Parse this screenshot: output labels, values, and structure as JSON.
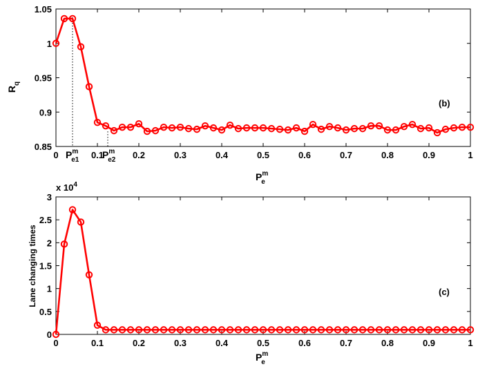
{
  "chart_data": [
    {
      "type": "line",
      "panel_label": "(b)",
      "ylabel": {
        "main": "R",
        "sub": "q"
      },
      "xlabel": {
        "main": "P",
        "sup": "m",
        "sub": "e"
      },
      "xlim": [
        0,
        1
      ],
      "ylim": [
        0.85,
        1.05
      ],
      "xticks": [
        "0",
        "0.1",
        "0.2",
        "0.3",
        "0.4",
        "0.5",
        "0.6",
        "0.7",
        "0.8",
        "0.9",
        "1"
      ],
      "yticks": [
        "0.85",
        "0.9",
        "0.95",
        "1",
        "1.05"
      ],
      "marker_annotations": [
        {
          "x": 0.04,
          "main": "P",
          "sup": "m",
          "sub": "e1"
        },
        {
          "x": 0.125,
          "main": "P",
          "sup": "m",
          "sub": "e2"
        }
      ],
      "color": "#ff0000",
      "series": [
        {
          "x": [
            0,
            0.02,
            0.04,
            0.06,
            0.08,
            0.1,
            0.12,
            0.14,
            0.16,
            0.18,
            0.2,
            0.22,
            0.24,
            0.26,
            0.28,
            0.3,
            0.32,
            0.34,
            0.36,
            0.38,
            0.4,
            0.42,
            0.44,
            0.46,
            0.48,
            0.5,
            0.52,
            0.54,
            0.56,
            0.58,
            0.6,
            0.62,
            0.64,
            0.66,
            0.68,
            0.7,
            0.72,
            0.74,
            0.76,
            0.78,
            0.8,
            0.82,
            0.84,
            0.86,
            0.88,
            0.9,
            0.92,
            0.94,
            0.96,
            0.98,
            1.0
          ],
          "y": [
            1.0,
            1.036,
            1.036,
            0.995,
            0.937,
            0.885,
            0.88,
            0.873,
            0.878,
            0.878,
            0.883,
            0.872,
            0.873,
            0.878,
            0.877,
            0.878,
            0.876,
            0.875,
            0.88,
            0.877,
            0.874,
            0.881,
            0.876,
            0.877,
            0.877,
            0.877,
            0.876,
            0.875,
            0.874,
            0.877,
            0.872,
            0.882,
            0.875,
            0.879,
            0.877,
            0.874,
            0.876,
            0.876,
            0.88,
            0.88,
            0.874,
            0.874,
            0.879,
            0.882,
            0.876,
            0.877,
            0.87,
            0.875,
            0.877,
            0.878,
            0.878
          ]
        }
      ]
    },
    {
      "type": "line",
      "panel_label": "(c)",
      "ylabel": {
        "main": "Lane changing times"
      },
      "xlabel": {
        "main": "P",
        "sup": "m",
        "sub": "e"
      },
      "multiplier": {
        "main": "x 10",
        "sup": "4"
      },
      "xlim": [
        0,
        1
      ],
      "ylim": [
        0,
        3
      ],
      "xticks": [
        "0",
        "0.1",
        "0.2",
        "0.3",
        "0.4",
        "0.5",
        "0.6",
        "0.7",
        "0.8",
        "0.9",
        "1"
      ],
      "yticks": [
        "0",
        "0.5",
        "1",
        "1.5",
        "2",
        "2.5",
        "3"
      ],
      "color": "#ff0000",
      "series": [
        {
          "x": [
            0,
            0.02,
            0.04,
            0.06,
            0.08,
            0.1,
            0.12,
            0.14,
            0.16,
            0.18,
            0.2,
            0.22,
            0.24,
            0.26,
            0.28,
            0.3,
            0.32,
            0.34,
            0.36,
            0.38,
            0.4,
            0.42,
            0.44,
            0.46,
            0.48,
            0.5,
            0.52,
            0.54,
            0.56,
            0.58,
            0.6,
            0.62,
            0.64,
            0.66,
            0.68,
            0.7,
            0.72,
            0.74,
            0.76,
            0.78,
            0.8,
            0.82,
            0.84,
            0.86,
            0.88,
            0.9,
            0.92,
            0.94,
            0.96,
            0.98,
            1.0
          ],
          "y": [
            0.0,
            1.97,
            2.72,
            2.45,
            1.3,
            0.2,
            0.1,
            0.1,
            0.1,
            0.1,
            0.1,
            0.1,
            0.1,
            0.1,
            0.1,
            0.1,
            0.1,
            0.1,
            0.1,
            0.1,
            0.1,
            0.1,
            0.1,
            0.1,
            0.1,
            0.1,
            0.1,
            0.1,
            0.1,
            0.1,
            0.1,
            0.1,
            0.1,
            0.1,
            0.1,
            0.1,
            0.1,
            0.1,
            0.1,
            0.1,
            0.1,
            0.1,
            0.1,
            0.1,
            0.1,
            0.1,
            0.1,
            0.1,
            0.1,
            0.1,
            0.1
          ]
        }
      ]
    }
  ]
}
